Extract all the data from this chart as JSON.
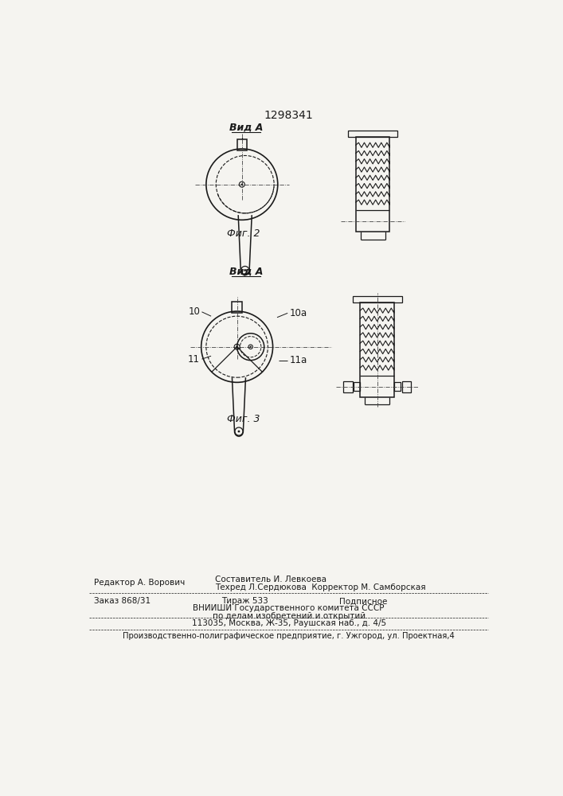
{
  "title": "1298341",
  "bg_color": "#f5f4f0",
  "line_color": "#1a1a1a",
  "fig2_label": "Фиг. 2",
  "fig3_label": "Фиг. 3",
  "vid_a_label": "Вид A",
  "label_10": "10",
  "label_10a": "10а",
  "label_11": "11",
  "label_11a": "11а",
  "footer_line1_left": "Редактор А. Ворович",
  "footer_line1_center": "Составитель И. Левкоева",
  "footer_line2_center": "Техред Л.Сердюкова  Корректор М. Самборская",
  "footer_zakaz": "Заказ 868/31",
  "footer_tirazh": "Тираж 533",
  "footer_podpisnoe": "Подписное",
  "footer_vniishi": "ВНИИШИ Государственного комитета СССР",
  "footer_po_delam": "по делам изобретений и открытий",
  "footer_address": "113035, Москва, Ж-35, Раушская наб., д. 4/5",
  "footer_poligraf": "Производственно-полиграфическое предприятие, г. Ужгород, ул. Проектная,4"
}
